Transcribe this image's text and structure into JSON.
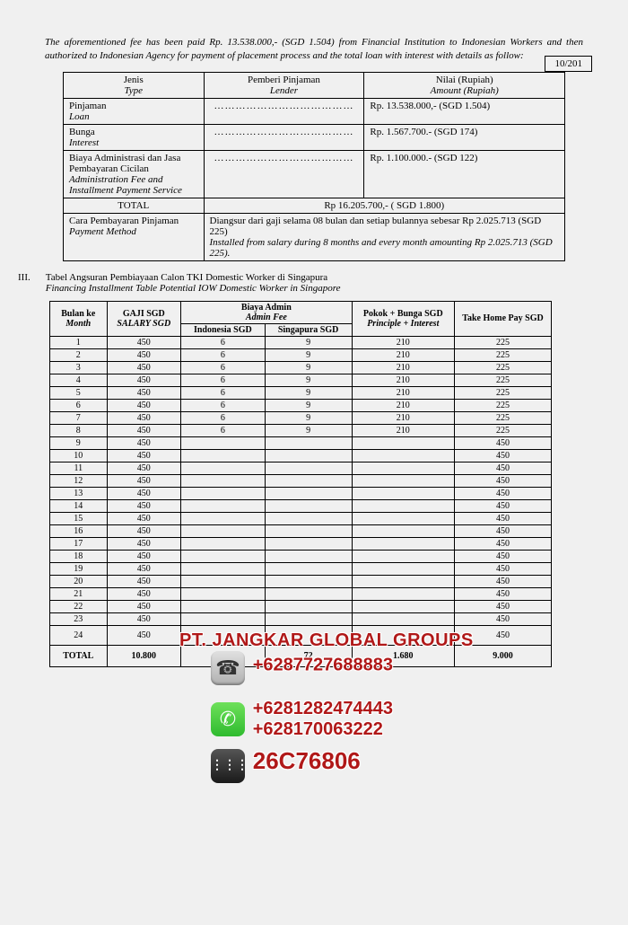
{
  "page_number": "10/201",
  "intro_text": "The aforementioned fee has been paid Rp. 13.538.000,- (SGD 1.504) from Financial Institution to Indonesian Workers and then authorized to Indonesian Agency for payment of placement process and the total loan with interest  with details as follow:",
  "loan_table": {
    "headers": {
      "type_id": "Jenis",
      "type_en": "Type",
      "lender_id": "Pemberi Pinjaman",
      "lender_en": "Lender",
      "amount_id": "Nilai (Rupiah)",
      "amount_en": "Amount (Rupiah)"
    },
    "rows": [
      {
        "type_id": "Pinjaman",
        "type_en": "Loan",
        "lender": "…………………………………",
        "amount": "Rp. 13.538.000,- (SGD 1.504)"
      },
      {
        "type_id": "Bunga",
        "type_en": "Interest",
        "lender": "…………………………………",
        "amount": "Rp.  1.567.700.- (SGD 174)"
      },
      {
        "type_id": "Biaya Administrasi dan Jasa Pembayaran Cicilan",
        "type_en": "Administration Fee and Installment Payment Service",
        "lender": "…………………………………",
        "amount": "Rp.  1.100.000.- (SGD 122)"
      }
    ],
    "total_label": "TOTAL",
    "total_value": "Rp 16.205.700,- ( SGD 1.800)",
    "method_label_id": "Cara Pembayaran Pinjaman",
    "method_label_en": "Payment Method",
    "method_value_id": "Diangsur dari gaji selama 08 bulan dan setiap bulannya sebesar Rp 2.025.713 (SGD 225)",
    "method_value_en": "Installed from salary during 8 months and every month amounting Rp 2.025.713 (SGD 225)."
  },
  "section3": {
    "num": "III.",
    "title_id": "Tabel Angsuran Pembiayaan Calon TKI Domestic Worker  di Singapura",
    "title_en": "Financing Installment Table Potential IOW Domestic Worker in Singapore"
  },
  "inst_table": {
    "headers": {
      "month_id": "Bulan ke",
      "month_en": "Month",
      "gaji_id": "GAJI SGD",
      "gaji_en": "SALARY SGD",
      "admin_id": "Biaya Admin",
      "admin_en": "Admin Fee",
      "admin_indo": "Indonesia SGD",
      "admin_sg": "Singapura SGD",
      "pokok_id": "Pokok + Bunga SGD",
      "pokok_en": "Principle + Interest",
      "takehome": "Take Home Pay SGD"
    },
    "rows": [
      {
        "m": "1",
        "s": "450",
        "ai": "6",
        "as": "9",
        "pi": "210",
        "th": "225"
      },
      {
        "m": "2",
        "s": "450",
        "ai": "6",
        "as": "9",
        "pi": "210",
        "th": "225"
      },
      {
        "m": "3",
        "s": "450",
        "ai": "6",
        "as": "9",
        "pi": "210",
        "th": "225"
      },
      {
        "m": "4",
        "s": "450",
        "ai": "6",
        "as": "9",
        "pi": "210",
        "th": "225"
      },
      {
        "m": "5",
        "s": "450",
        "ai": "6",
        "as": "9",
        "pi": "210",
        "th": "225"
      },
      {
        "m": "6",
        "s": "450",
        "ai": "6",
        "as": "9",
        "pi": "210",
        "th": "225"
      },
      {
        "m": "7",
        "s": "450",
        "ai": "6",
        "as": "9",
        "pi": "210",
        "th": "225"
      },
      {
        "m": "8",
        "s": "450",
        "ai": "6",
        "as": "9",
        "pi": "210",
        "th": "225"
      },
      {
        "m": "9",
        "s": "450",
        "ai": "",
        "as": "",
        "pi": "",
        "th": "450"
      },
      {
        "m": "10",
        "s": "450",
        "ai": "",
        "as": "",
        "pi": "",
        "th": "450"
      },
      {
        "m": "11",
        "s": "450",
        "ai": "",
        "as": "",
        "pi": "",
        "th": "450"
      },
      {
        "m": "12",
        "s": "450",
        "ai": "",
        "as": "",
        "pi": "",
        "th": "450"
      },
      {
        "m": "13",
        "s": "450",
        "ai": "",
        "as": "",
        "pi": "",
        "th": "450"
      },
      {
        "m": "14",
        "s": "450",
        "ai": "",
        "as": "",
        "pi": "",
        "th": "450"
      },
      {
        "m": "15",
        "s": "450",
        "ai": "",
        "as": "",
        "pi": "",
        "th": "450"
      },
      {
        "m": "16",
        "s": "450",
        "ai": "",
        "as": "",
        "pi": "",
        "th": "450"
      },
      {
        "m": "17",
        "s": "450",
        "ai": "",
        "as": "",
        "pi": "",
        "th": "450"
      },
      {
        "m": "18",
        "s": "450",
        "ai": "",
        "as": "",
        "pi": "",
        "th": "450"
      },
      {
        "m": "19",
        "s": "450",
        "ai": "",
        "as": "",
        "pi": "",
        "th": "450"
      },
      {
        "m": "20",
        "s": "450",
        "ai": "",
        "as": "",
        "pi": "",
        "th": "450"
      },
      {
        "m": "21",
        "s": "450",
        "ai": "",
        "as": "",
        "pi": "",
        "th": "450"
      },
      {
        "m": "22",
        "s": "450",
        "ai": "",
        "as": "",
        "pi": "",
        "th": "450"
      },
      {
        "m": "23",
        "s": "450",
        "ai": "",
        "as": "",
        "pi": "",
        "th": "450"
      },
      {
        "m": "24",
        "s": "450",
        "ai": "",
        "as": "",
        "pi": "",
        "th": "450"
      }
    ],
    "total": {
      "label": "TOTAL",
      "s": "10.800",
      "ai": "48",
      "as": "72",
      "pi": "1.680",
      "th": "9.000"
    }
  },
  "watermark": {
    "company": "PT. JANGKAR GLOBAL GROUPS",
    "phone1": "+6287727688883",
    "phone2": "+6281282474443",
    "phone3": "+628170063222",
    "bbm": "26C76806"
  }
}
